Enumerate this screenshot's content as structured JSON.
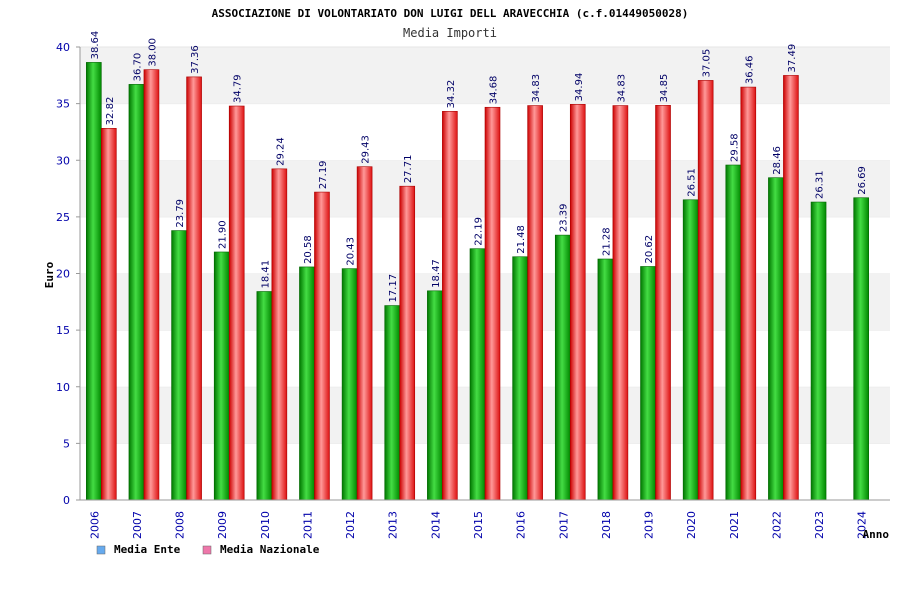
{
  "chart_data": {
    "type": "bar",
    "title": "ASSOCIAZIONE DI VOLONTARIATO DON LUIGI DELL ARAVECCHIA (c.f.01449050028)",
    "subtitle": "Media Importi",
    "xlabel": "Anno",
    "ylabel": "Euro",
    "ylim": [
      0,
      40
    ],
    "yticks": [
      0,
      5,
      10,
      15,
      20,
      25,
      30,
      35,
      40
    ],
    "categories": [
      "2006",
      "2007",
      "2008",
      "2009",
      "2010",
      "2011",
      "2012",
      "2013",
      "2014",
      "2015",
      "2016",
      "2017",
      "2018",
      "2019",
      "2020",
      "2021",
      "2022",
      "2023",
      "2024"
    ],
    "series": [
      {
        "name": "Media Ente",
        "color": "#00aa00",
        "legend_color": "#66aaee",
        "values": [
          38.64,
          36.7,
          23.79,
          21.9,
          18.41,
          20.58,
          20.43,
          17.17,
          18.47,
          22.19,
          21.48,
          23.39,
          21.28,
          20.62,
          26.51,
          29.58,
          28.46,
          26.31,
          26.69
        ],
        "labels": [
          "38.64",
          "36.70",
          "23.79",
          "21.90",
          "18.41",
          "20.58",
          "20.43",
          "17.17",
          "18.47",
          "22.19",
          "21.48",
          "23.39",
          "21.28",
          "20.62",
          "26.51",
          "29.58",
          "28.46",
          "26.31",
          "26.69"
        ]
      },
      {
        "name": "Media Nazionale",
        "color": "#ee2222",
        "legend_color": "#ee77aa",
        "values": [
          32.82,
          38.0,
          37.36,
          34.79,
          29.24,
          27.19,
          29.43,
          27.71,
          34.32,
          34.68,
          34.83,
          34.94,
          34.83,
          34.85,
          37.05,
          36.46,
          37.49,
          null,
          null
        ],
        "labels": [
          "32.82",
          "38.00",
          "37.36",
          "34.79",
          "29.24",
          "27.19",
          "29.43",
          "27.71",
          "34.32",
          "34.68",
          "34.83",
          "34.94",
          "34.83",
          "34.85",
          "37.05",
          "36.46",
          "37.49",
          null,
          null
        ]
      }
    ]
  }
}
